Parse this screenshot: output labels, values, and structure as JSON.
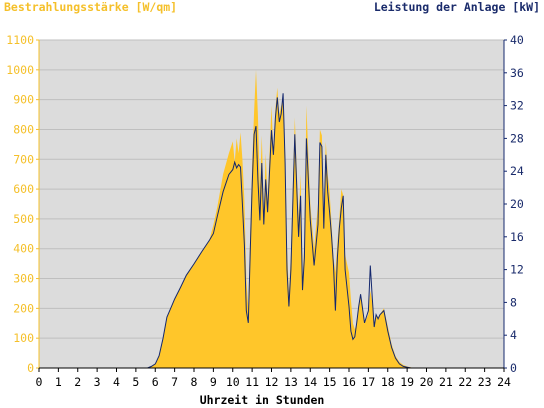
{
  "chart_data": {
    "type": "area",
    "title_left": "Bestrahlungsstärke [W/qm]",
    "title_right": "Leistung der Anlage [kW]",
    "xlabel": "Uhrzeit in Stunden",
    "xlim": [
      0,
      24
    ],
    "x_ticks": [
      "0",
      "1",
      "2",
      "3",
      "4",
      "5",
      "6",
      "7",
      "8",
      "9",
      "10",
      "11",
      "12",
      "13",
      "14",
      "15",
      "16",
      "17",
      "18",
      "19",
      "20",
      "21",
      "22",
      "23",
      "24"
    ],
    "y_left": {
      "lim": [
        0,
        1100
      ],
      "ticks": [
        "0",
        "100",
        "200",
        "300",
        "400",
        "500",
        "600",
        "700",
        "800",
        "900",
        "1000",
        "1100"
      ]
    },
    "y_right": {
      "lim": [
        0,
        40
      ],
      "ticks": [
        "0",
        "4",
        "8",
        "12",
        "16",
        "20",
        "24",
        "28",
        "32",
        "36",
        "40"
      ]
    },
    "grid": true,
    "colors": {
      "irradiance": "#ffc62a",
      "power": "#14286e",
      "plot_bg": "#dcdcdc",
      "grid": "#bfbfbf"
    },
    "series": [
      {
        "axis": "left",
        "style": "area",
        "x": [
          0,
          5.6,
          5.8,
          6.0,
          6.2,
          6.4,
          6.6,
          6.8,
          7.0,
          7.3,
          7.6,
          8.0,
          8.4,
          8.8,
          9.0,
          9.2,
          9.5,
          9.8,
          10.0,
          10.1,
          10.2,
          10.3,
          10.4,
          10.5,
          10.6,
          10.7,
          10.8,
          10.9,
          11.0,
          11.1,
          11.2,
          11.3,
          11.4,
          11.5,
          11.6,
          11.7,
          11.8,
          12.0,
          12.1,
          12.2,
          12.3,
          12.4,
          12.5,
          12.6,
          12.7,
          12.8,
          12.9,
          13.0,
          13.2,
          13.4,
          13.5,
          13.6,
          13.7,
          13.8,
          14.0,
          14.2,
          14.4,
          14.5,
          14.6,
          14.7,
          14.8,
          14.9,
          15.0,
          15.1,
          15.2,
          15.3,
          15.4,
          15.5,
          15.6,
          15.7,
          15.8,
          16.0,
          16.1,
          16.2,
          16.3,
          16.4,
          16.5,
          16.6,
          16.8,
          17.0,
          17.1,
          17.2,
          17.3,
          17.4,
          17.5,
          17.6,
          17.8,
          18.0,
          18.2,
          18.4,
          18.6,
          18.8,
          19.0,
          19.2,
          19.4,
          19.6,
          24
        ],
        "values": [
          0,
          0,
          5,
          15,
          40,
          100,
          170,
          200,
          230,
          270,
          310,
          350,
          390,
          430,
          480,
          540,
          650,
          720,
          760,
          690,
          770,
          720,
          790,
          700,
          560,
          300,
          200,
          450,
          680,
          860,
          1000,
          850,
          600,
          780,
          520,
          720,
          560,
          880,
          720,
          870,
          940,
          850,
          880,
          900,
          720,
          400,
          250,
          380,
          840,
          500,
          650,
          300,
          420,
          880,
          550,
          400,
          550,
          800,
          780,
          520,
          760,
          650,
          590,
          480,
          370,
          320,
          420,
          500,
          600,
          580,
          380,
          320,
          230,
          150,
          130,
          150,
          210,
          250,
          150,
          180,
          260,
          220,
          140,
          180,
          170,
          180,
          200,
          140,
          80,
          40,
          20,
          10,
          5,
          2,
          0,
          0,
          0
        ]
      },
      {
        "axis": "right",
        "style": "line",
        "x": [
          0,
          5.6,
          5.8,
          6.0,
          6.2,
          6.4,
          6.6,
          6.8,
          7.0,
          7.3,
          7.6,
          8.0,
          8.4,
          8.8,
          9.0,
          9.2,
          9.5,
          9.8,
          10.0,
          10.1,
          10.2,
          10.3,
          10.4,
          10.5,
          10.6,
          10.7,
          10.8,
          10.9,
          11.0,
          11.1,
          11.2,
          11.3,
          11.4,
          11.5,
          11.6,
          11.7,
          11.8,
          12.0,
          12.1,
          12.2,
          12.3,
          12.4,
          12.5,
          12.6,
          12.7,
          12.8,
          12.9,
          13.0,
          13.2,
          13.4,
          13.5,
          13.6,
          13.7,
          13.8,
          14.0,
          14.2,
          14.4,
          14.5,
          14.6,
          14.7,
          14.8,
          14.9,
          15.0,
          15.1,
          15.2,
          15.3,
          15.4,
          15.5,
          15.6,
          15.7,
          15.8,
          16.0,
          16.1,
          16.2,
          16.3,
          16.4,
          16.5,
          16.6,
          16.8,
          17.0,
          17.1,
          17.2,
          17.3,
          17.4,
          17.5,
          17.6,
          17.8,
          18.0,
          18.2,
          18.4,
          18.6,
          18.8,
          19.0,
          19.2,
          19.4,
          19.6,
          24
        ],
        "values": [
          0,
          0,
          0.2,
          0.5,
          1.5,
          3.6,
          6.2,
          7.3,
          8.4,
          9.8,
          11.3,
          12.7,
          14.2,
          15.6,
          16.4,
          18.5,
          21.5,
          23.6,
          24.2,
          25.1,
          24.4,
          24.8,
          24.5,
          20.0,
          15.0,
          7.0,
          5.5,
          14.0,
          22.0,
          28.5,
          29.5,
          23.0,
          18.0,
          25.0,
          17.5,
          23.0,
          19.0,
          29.0,
          26.0,
          30.5,
          33.0,
          30.0,
          31.0,
          33.5,
          25.0,
          12.0,
          7.5,
          12.0,
          28.5,
          16.0,
          21.0,
          9.5,
          13.5,
          28.0,
          18.0,
          12.5,
          17.5,
          27.5,
          27.0,
          17.0,
          26.0,
          21.5,
          19.0,
          16.0,
          12.5,
          7.0,
          13.5,
          17.0,
          19.5,
          21.0,
          12.0,
          7.5,
          4.5,
          3.5,
          3.8,
          5.5,
          7.5,
          9.0,
          5.5,
          7.0,
          12.5,
          8.5,
          5.0,
          6.5,
          6.0,
          6.5,
          7.0,
          4.5,
          2.5,
          1.2,
          0.5,
          0.2,
          0.1,
          0,
          0,
          0,
          0
        ]
      }
    ]
  }
}
